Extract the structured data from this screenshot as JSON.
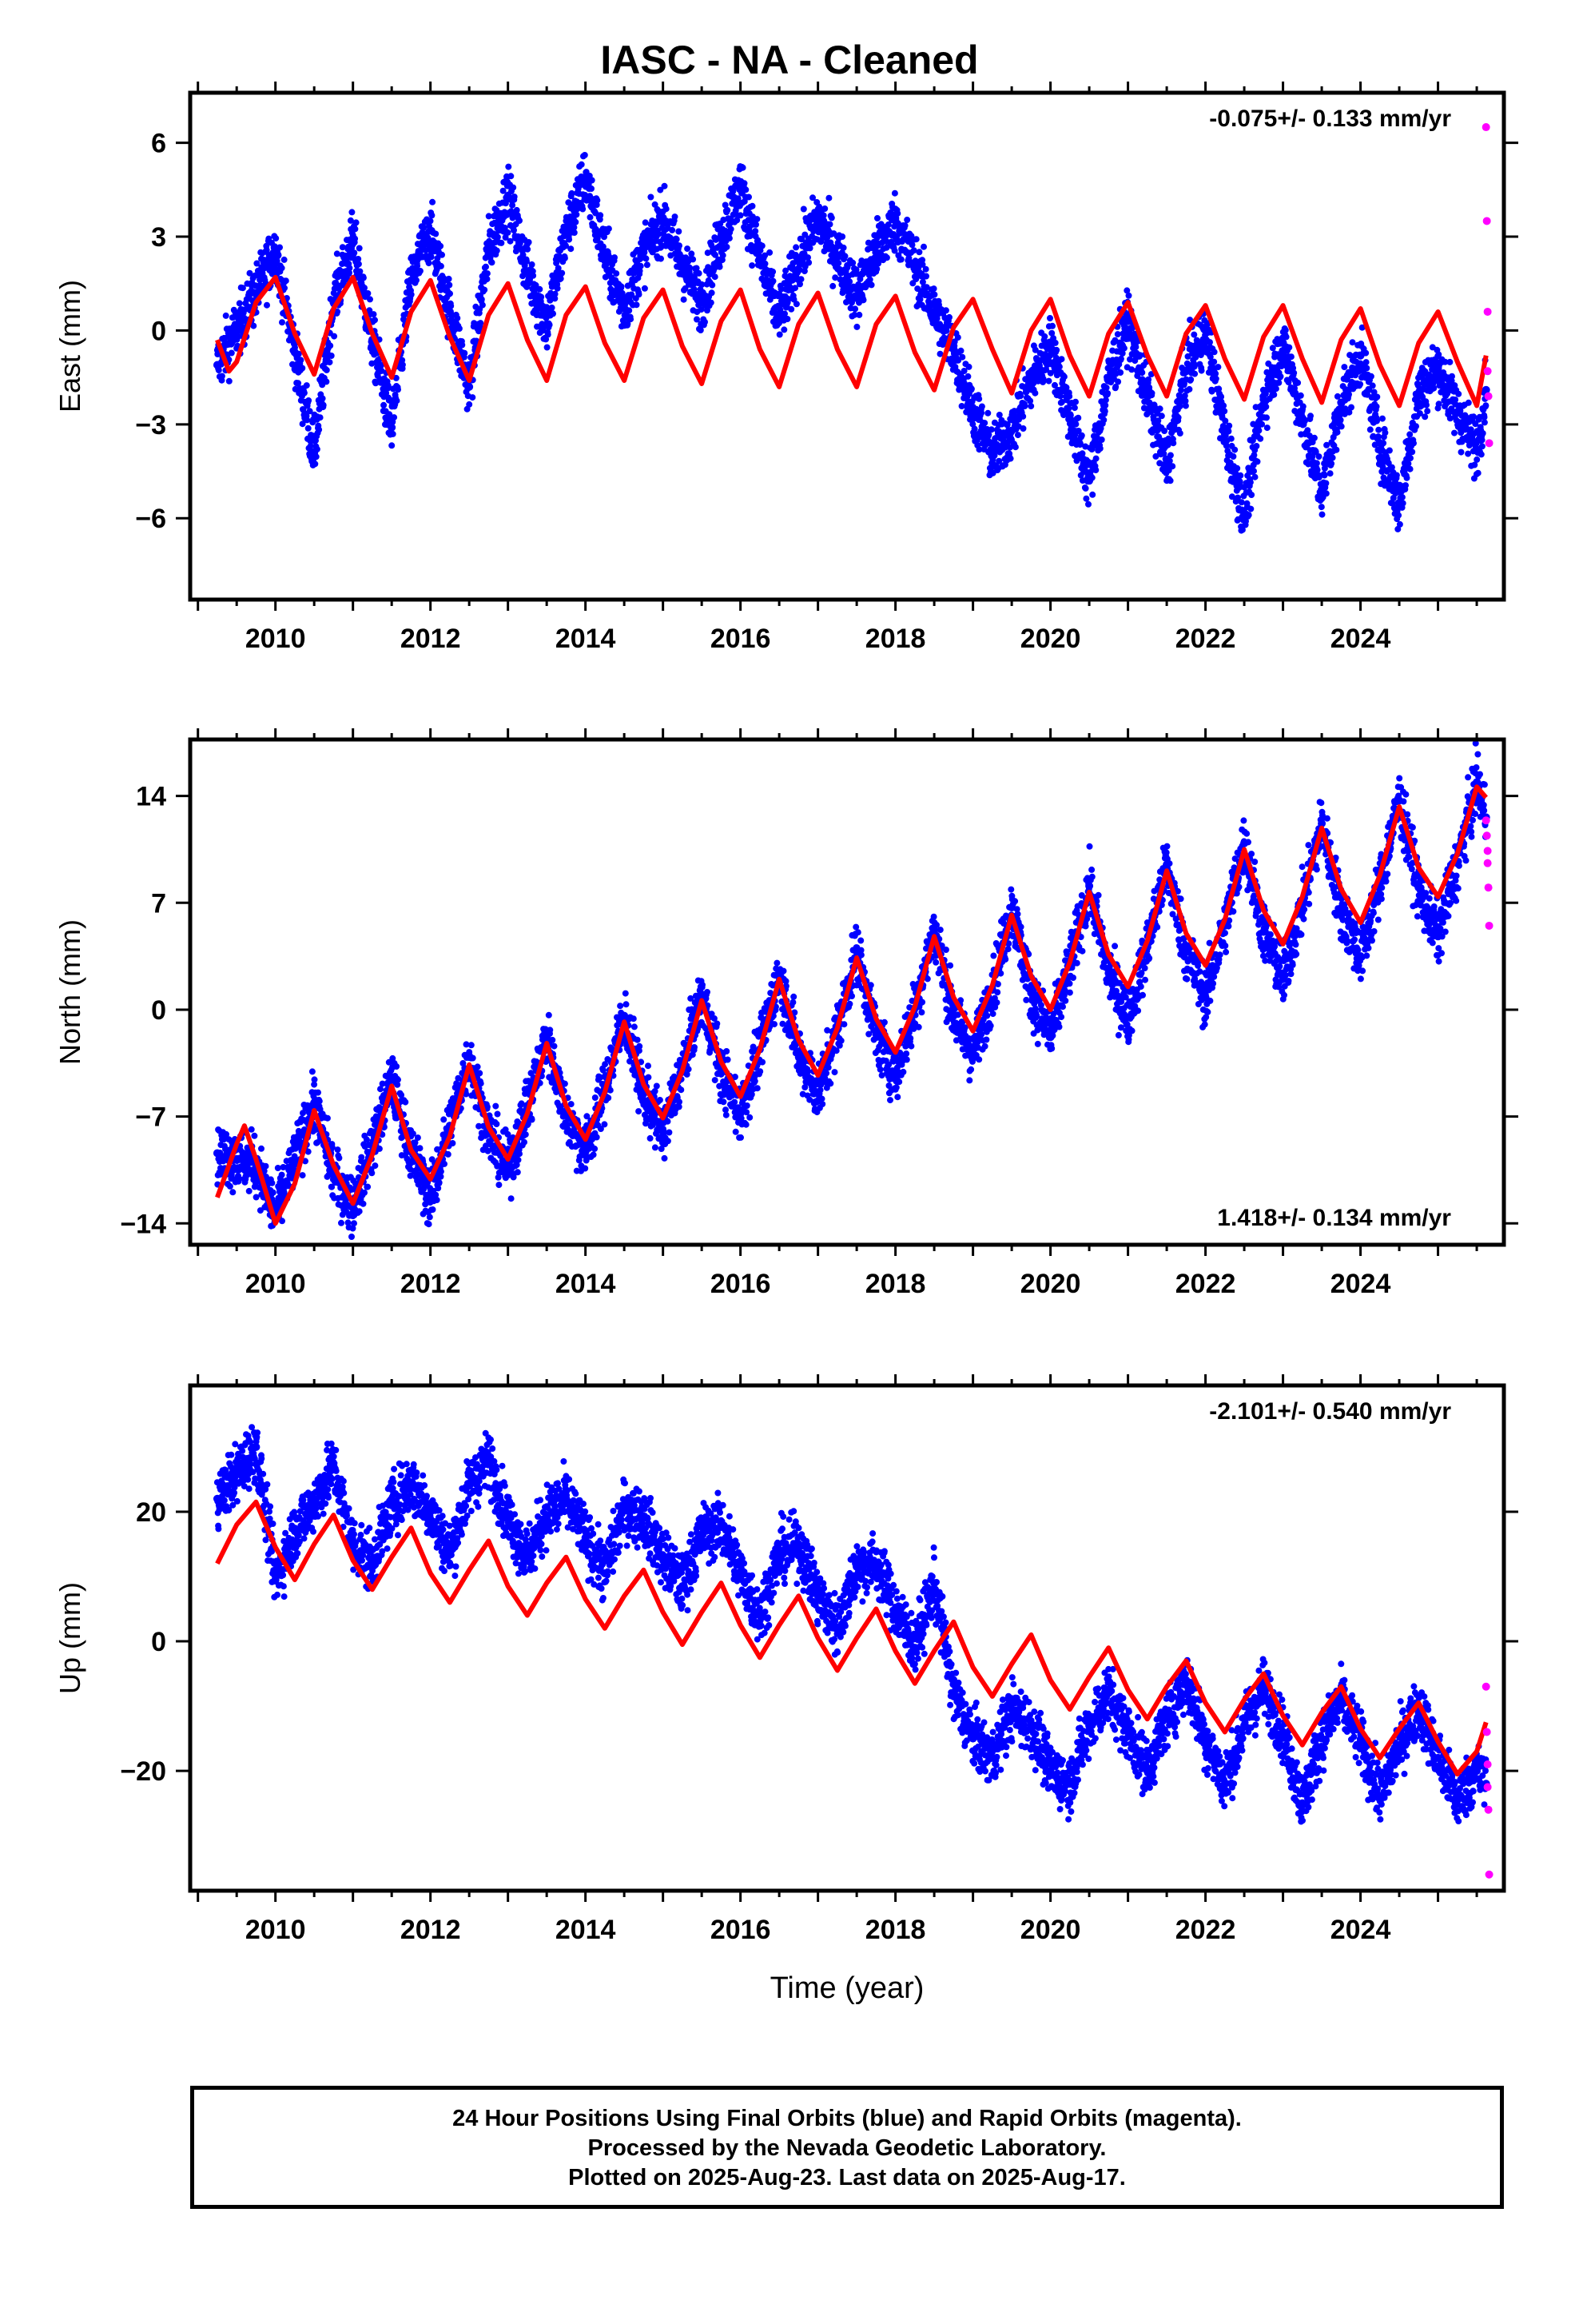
{
  "page": {
    "title": "IASC  - NA - Cleaned",
    "footer_lines": [
      "24 Hour Positions Using Final Orbits (blue) and Rapid Orbits (magenta).",
      "Processed by the Nevada Geodetic Laboratory.",
      "Plotted on 2025-Aug-23. Last data on 2025-Aug-17."
    ]
  },
  "colors": {
    "final_orbits": "#0000ff",
    "rapid_orbits": "#ff00ff",
    "model_fit": "#ff0000",
    "frame": "#000000"
  },
  "chart_data": [
    {
      "type": "scatter",
      "ylabel": "East (mm)",
      "xlabel": "",
      "rate_label": "-0.075+/- 0.133 mm/yr",
      "rate_label_position": "top-right",
      "xlim": [
        2008.9,
        2025.85
      ],
      "ylim": [
        -8.6,
        7.6
      ],
      "x_ticks": [
        2010,
        2012,
        2014,
        2016,
        2018,
        2020,
        2022,
        2024
      ],
      "y_ticks": [
        6,
        3,
        0,
        -3,
        -6
      ],
      "y_tick_labels": [
        "6",
        "3",
        "0",
        "−3",
        "−6"
      ],
      "series": [
        {
          "role": "final_orbits",
          "x": [
            2009.25,
            2009.75,
            2010.0,
            2010.25,
            2010.5,
            2010.75,
            2011.0,
            2011.25,
            2011.5,
            2011.75,
            2012.0,
            2012.25,
            2012.5,
            2012.75,
            2013.0,
            2013.25,
            2013.5,
            2013.75,
            2014.0,
            2014.25,
            2014.5,
            2014.75,
            2015.0,
            2015.25,
            2015.5,
            2015.75,
            2016.0,
            2016.25,
            2016.5,
            2016.75,
            2017.0,
            2017.25,
            2017.5,
            2017.75,
            2018.0,
            2018.25,
            2018.5,
            2018.75,
            2019.0,
            2019.25,
            2019.5,
            2019.75,
            2020.0,
            2020.25,
            2020.5,
            2020.75,
            2021.0,
            2021.25,
            2021.5,
            2021.75,
            2022.0,
            2022.25,
            2022.5,
            2022.75,
            2023.0,
            2023.25,
            2023.5,
            2023.75,
            2024.0,
            2024.25,
            2024.5,
            2024.75,
            2025.0,
            2025.25,
            2025.5,
            2025.62
          ],
          "y": [
            -1.1,
            1.2,
            2.6,
            -0.7,
            -3.9,
            0.9,
            2.9,
            -0.3,
            -3.1,
            1.6,
            3.2,
            0.6,
            -1.8,
            2.6,
            4.3,
            1.9,
            0.2,
            3.1,
            4.9,
            2.4,
            0.7,
            2.5,
            3.6,
            2.1,
            0.9,
            3.0,
            4.6,
            2.3,
            0.4,
            2.2,
            3.6,
            2.4,
            1.1,
            2.5,
            3.5,
            2.1,
            0.6,
            -0.6,
            -2.5,
            -4.0,
            -3.2,
            -1.6,
            -0.5,
            -2.7,
            -4.8,
            -1.6,
            0.3,
            -2.1,
            -4.3,
            -1.3,
            0.0,
            -3.3,
            -5.9,
            -2.2,
            -0.4,
            -2.8,
            -5.2,
            -2.3,
            -0.8,
            -3.6,
            -5.6,
            -2.0,
            -1.2,
            -2.6,
            -3.8,
            -1.9
          ]
        },
        {
          "role": "rapid_orbits",
          "x": [
            2025.62,
            2025.63,
            2025.64,
            2025.64,
            2025.65,
            2025.66
          ],
          "y": [
            6.5,
            3.5,
            0.6,
            -1.3,
            -2.1,
            -3.6
          ]
        },
        {
          "role": "model_fit",
          "x": [
            2009.25,
            2009.4,
            2009.5,
            2009.75,
            2010.0,
            2010.25,
            2010.5,
            2010.75,
            2011.0,
            2011.25,
            2011.5,
            2011.75,
            2012.0,
            2012.25,
            2012.5,
            2012.75,
            2013.0,
            2013.25,
            2013.5,
            2013.75,
            2014.0,
            2014.25,
            2014.5,
            2014.75,
            2015.0,
            2015.25,
            2015.5,
            2015.75,
            2016.0,
            2016.25,
            2016.5,
            2016.75,
            2017.0,
            2017.25,
            2017.5,
            2017.75,
            2018.0,
            2018.25,
            2018.5,
            2018.75,
            2019.0,
            2019.25,
            2019.5,
            2019.75,
            2020.0,
            2020.25,
            2020.5,
            2020.75,
            2021.0,
            2021.25,
            2021.5,
            2021.75,
            2022.0,
            2022.25,
            2022.5,
            2022.75,
            2023.0,
            2023.25,
            2023.5,
            2023.75,
            2024.0,
            2024.25,
            2024.5,
            2024.75,
            2025.0,
            2025.25,
            2025.5,
            2025.62
          ],
          "y": [
            -0.3,
            -1.3,
            -1.0,
            0.9,
            1.7,
            -0.1,
            -1.4,
            0.7,
            1.7,
            -0.1,
            -1.5,
            0.6,
            1.6,
            -0.2,
            -1.6,
            0.5,
            1.5,
            -0.3,
            -1.6,
            0.5,
            1.4,
            -0.4,
            -1.6,
            0.4,
            1.3,
            -0.5,
            -1.7,
            0.3,
            1.3,
            -0.6,
            -1.8,
            0.2,
            1.2,
            -0.6,
            -1.8,
            0.2,
            1.1,
            -0.7,
            -1.9,
            0.1,
            1.0,
            -0.6,
            -2.0,
            0.0,
            1.0,
            -0.8,
            -2.1,
            -0.1,
            0.9,
            -0.8,
            -2.1,
            -0.1,
            0.8,
            -0.9,
            -2.2,
            -0.2,
            0.8,
            -0.9,
            -2.3,
            -0.3,
            0.7,
            -1.1,
            -2.4,
            -0.4,
            0.6,
            -1.0,
            -2.4,
            -0.8
          ]
        }
      ]
    },
    {
      "type": "scatter",
      "ylabel": "North (mm)",
      "xlabel": "",
      "rate_label": "1.418+/- 0.134 mm/yr",
      "rate_label_position": "bottom-right",
      "xlim": [
        2008.9,
        2025.85
      ],
      "ylim": [
        -15.4,
        17.7
      ],
      "x_ticks": [
        2010,
        2012,
        2014,
        2016,
        2018,
        2020,
        2022,
        2024
      ],
      "y_ticks": [
        14,
        7,
        0,
        -7,
        -14
      ],
      "y_tick_labels": [
        "14",
        "7",
        "0",
        "−7",
        "−14"
      ],
      "series": [
        {
          "role": "final_orbits",
          "x": [
            2009.25,
            2009.75,
            2010.0,
            2010.25,
            2010.5,
            2010.75,
            2011.0,
            2011.25,
            2011.5,
            2011.75,
            2012.0,
            2012.25,
            2012.5,
            2012.75,
            2013.0,
            2013.25,
            2013.5,
            2013.75,
            2014.0,
            2014.25,
            2014.5,
            2014.75,
            2015.0,
            2015.25,
            2015.5,
            2015.75,
            2016.0,
            2016.25,
            2016.5,
            2016.75,
            2017.0,
            2017.25,
            2017.5,
            2017.75,
            2018.0,
            2018.25,
            2018.5,
            2018.75,
            2019.0,
            2019.25,
            2019.5,
            2019.75,
            2020.0,
            2020.25,
            2020.5,
            2020.75,
            2021.0,
            2021.25,
            2021.5,
            2021.75,
            2022.0,
            2022.25,
            2022.5,
            2022.75,
            2023.0,
            2023.25,
            2023.5,
            2023.75,
            2024.0,
            2024.25,
            2024.5,
            2024.75,
            2025.0,
            2025.25,
            2025.5,
            2025.62
          ],
          "y": [
            -9.4,
            -10.2,
            -13.4,
            -9.9,
            -6.1,
            -10.8,
            -12.9,
            -8.9,
            -4.6,
            -9.3,
            -12.4,
            -7.6,
            -3.1,
            -8.0,
            -10.5,
            -6.4,
            -1.8,
            -6.9,
            -9.3,
            -5.2,
            -0.4,
            -5.5,
            -8.0,
            -3.9,
            1.0,
            -4.1,
            -6.8,
            -2.6,
            2.4,
            -2.9,
            -5.5,
            -1.3,
            3.8,
            -1.6,
            -4.3,
            0.1,
            5.2,
            -0.4,
            -3.0,
            1.3,
            6.7,
            1.1,
            -1.8,
            2.8,
            8.1,
            2.4,
            -0.5,
            4.1,
            9.5,
            3.8,
            0.8,
            5.5,
            10.9,
            5.1,
            2.0,
            6.9,
            12.2,
            6.5,
            3.5,
            8.3,
            13.7,
            8.0,
            4.8,
            9.6,
            14.9,
            12.6
          ]
        },
        {
          "role": "rapid_orbits",
          "x": [
            2025.62,
            2025.63,
            2025.64,
            2025.64,
            2025.65,
            2025.66
          ],
          "y": [
            12.4,
            11.4,
            10.4,
            9.6,
            8.0,
            5.5
          ]
        },
        {
          "role": "model_fit",
          "x": [
            2009.25,
            2009.5,
            2009.6,
            2009.75,
            2010.0,
            2010.25,
            2010.5,
            2010.75,
            2011.0,
            2011.25,
            2011.5,
            2011.75,
            2012.0,
            2012.25,
            2012.5,
            2012.75,
            2013.0,
            2013.25,
            2013.5,
            2013.75,
            2014.0,
            2014.25,
            2014.5,
            2014.75,
            2015.0,
            2015.25,
            2015.5,
            2015.75,
            2016.0,
            2016.25,
            2016.5,
            2016.75,
            2017.0,
            2017.25,
            2017.5,
            2017.75,
            2018.0,
            2018.25,
            2018.5,
            2018.75,
            2019.0,
            2019.25,
            2019.5,
            2019.75,
            2020.0,
            2020.25,
            2020.5,
            2020.75,
            2021.0,
            2021.25,
            2021.5,
            2021.75,
            2022.0,
            2022.25,
            2022.5,
            2022.75,
            2023.0,
            2023.25,
            2023.5,
            2023.75,
            2024.0,
            2024.25,
            2024.5,
            2024.75,
            2025.0,
            2025.25,
            2025.5,
            2025.62
          ],
          "y": [
            -12.3,
            -8.8,
            -7.6,
            -9.8,
            -14.0,
            -11.4,
            -6.6,
            -10.2,
            -12.7,
            -9.5,
            -5.0,
            -9.2,
            -11.1,
            -8.3,
            -3.6,
            -7.7,
            -9.8,
            -6.8,
            -2.2,
            -6.3,
            -8.5,
            -5.4,
            -0.8,
            -4.9,
            -7.1,
            -4.0,
            0.6,
            -3.4,
            -5.7,
            -2.6,
            2.0,
            -2.0,
            -4.3,
            -1.2,
            3.4,
            -0.6,
            -2.8,
            0.2,
            4.8,
            0.8,
            -1.4,
            1.6,
            6.2,
            2.2,
            0.0,
            3.1,
            7.7,
            3.6,
            1.5,
            4.5,
            9.1,
            5.0,
            2.9,
            5.9,
            10.5,
            6.5,
            4.3,
            7.4,
            11.9,
            7.9,
            5.7,
            8.8,
            13.3,
            9.3,
            7.4,
            10.2,
            14.6,
            13.9
          ]
        }
      ]
    },
    {
      "type": "scatter",
      "ylabel": "Up (mm)",
      "xlabel": "Time (year)",
      "rate_label": "-2.101+/- 0.540 mm/yr",
      "rate_label_position": "top-right",
      "xlim": [
        2008.9,
        2025.85
      ],
      "ylim": [
        -38.5,
        39.5
      ],
      "x_ticks": [
        2010,
        2012,
        2014,
        2016,
        2018,
        2020,
        2022,
        2024
      ],
      "y_ticks": [
        20,
        0,
        -20
      ],
      "y_tick_labels": [
        "20",
        "0",
        "−20"
      ],
      "series": [
        {
          "role": "final_orbits",
          "x": [
            2009.25,
            2009.75,
            2010.0,
            2010.25,
            2010.5,
            2010.75,
            2011.0,
            2011.25,
            2011.5,
            2011.75,
            2012.0,
            2012.25,
            2012.5,
            2012.75,
            2013.0,
            2013.25,
            2013.5,
            2013.75,
            2014.0,
            2014.25,
            2014.5,
            2014.75,
            2015.0,
            2015.25,
            2015.5,
            2015.75,
            2016.0,
            2016.25,
            2016.5,
            2016.75,
            2017.0,
            2017.25,
            2017.5,
            2017.75,
            2018.0,
            2018.25,
            2018.5,
            2018.75,
            2019.0,
            2019.25,
            2019.5,
            2019.75,
            2020.0,
            2020.25,
            2020.5,
            2020.75,
            2021.0,
            2021.25,
            2021.5,
            2021.75,
            2022.0,
            2022.25,
            2022.5,
            2022.75,
            2023.0,
            2023.25,
            2023.5,
            2023.75,
            2024.0,
            2024.25,
            2024.5,
            2024.75,
            2025.0,
            2025.25,
            2025.5,
            2025.62
          ],
          "y": [
            22.0,
            30.0,
            9.5,
            17.0,
            21.5,
            27.0,
            15.0,
            12.0,
            21.0,
            24.5,
            20.0,
            13.5,
            24.0,
            28.0,
            19.0,
            13.0,
            19.5,
            22.0,
            16.0,
            10.5,
            20.5,
            19.0,
            13.0,
            8.5,
            16.5,
            18.0,
            10.5,
            4.0,
            13.5,
            15.0,
            7.0,
            2.0,
            11.5,
            12.0,
            5.0,
            -1.0,
            9.0,
            -8.0,
            -15.0,
            -18.0,
            -10.5,
            -13.0,
            -20.0,
            -22.0,
            -13.0,
            -8.0,
            -14.0,
            -20.0,
            -12.0,
            -6.0,
            -15.0,
            -22.0,
            -13.0,
            -7.0,
            -14.0,
            -25.0,
            -15.0,
            -9.0,
            -15.5,
            -24.0,
            -16.0,
            -10.0,
            -18.0,
            -24.5,
            -20.0,
            -22.0
          ]
        },
        {
          "role": "rapid_orbits",
          "x": [
            2025.62,
            2025.63,
            2025.64,
            2025.64,
            2025.65,
            2025.66
          ],
          "y": [
            -7.0,
            -14.0,
            -19.0,
            -22.5,
            -26.0,
            -36.0
          ]
        },
        {
          "role": "model_fit",
          "x": [
            2009.25,
            2009.5,
            2009.75,
            2010.0,
            2010.25,
            2010.5,
            2010.75,
            2011.0,
            2011.25,
            2011.5,
            2011.75,
            2012.0,
            2012.25,
            2012.5,
            2012.75,
            2013.0,
            2013.25,
            2013.5,
            2013.75,
            2014.0,
            2014.25,
            2014.5,
            2014.75,
            2015.0,
            2015.25,
            2015.5,
            2015.75,
            2016.0,
            2016.25,
            2016.5,
            2016.75,
            2017.0,
            2017.25,
            2017.5,
            2017.75,
            2018.0,
            2018.25,
            2018.5,
            2018.75,
            2019.0,
            2019.25,
            2019.5,
            2019.75,
            2020.0,
            2020.25,
            2020.5,
            2020.75,
            2021.0,
            2021.25,
            2021.5,
            2021.75,
            2022.0,
            2022.25,
            2022.5,
            2022.75,
            2023.0,
            2023.25,
            2023.5,
            2023.75,
            2024.0,
            2024.25,
            2024.5,
            2024.75,
            2025.0,
            2025.25,
            2025.5,
            2025.62
          ],
          "y": [
            12.0,
            18.0,
            21.5,
            14.5,
            9.5,
            15.0,
            19.5,
            12.5,
            8.0,
            13.0,
            17.5,
            10.5,
            6.0,
            11.0,
            15.5,
            8.5,
            4.0,
            9.0,
            13.0,
            6.5,
            2.0,
            7.0,
            11.0,
            4.5,
            -0.5,
            4.5,
            9.0,
            2.5,
            -2.5,
            2.5,
            7.0,
            0.5,
            -4.5,
            0.5,
            5.0,
            -1.5,
            -6.5,
            -1.5,
            3.0,
            -4.0,
            -8.5,
            -3.5,
            1.0,
            -6.0,
            -10.5,
            -5.5,
            -1.0,
            -7.5,
            -12.0,
            -7.0,
            -3.0,
            -9.5,
            -14.0,
            -9.0,
            -5.0,
            -11.5,
            -16.0,
            -11.0,
            -7.0,
            -13.5,
            -18.0,
            -13.5,
            -9.5,
            -15.5,
            -20.5,
            -17.0,
            -12.5
          ]
        }
      ]
    }
  ]
}
